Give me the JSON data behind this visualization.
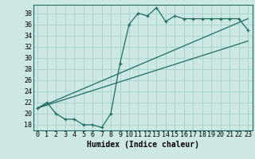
{
  "xlabel": "Humidex (Indice chaleur)",
  "bg_color": "#cde8e4",
  "grid_color": "#a8d4ce",
  "line_color": "#1e6b64",
  "xlim": [
    -0.5,
    23.5
  ],
  "ylim": [
    17,
    39.5
  ],
  "yticks": [
    18,
    20,
    22,
    24,
    26,
    28,
    30,
    32,
    34,
    36,
    38
  ],
  "xticks": [
    0,
    1,
    2,
    3,
    4,
    5,
    6,
    7,
    8,
    9,
    10,
    11,
    12,
    13,
    14,
    15,
    16,
    17,
    18,
    19,
    20,
    21,
    22,
    23
  ],
  "line1_x": [
    0,
    1,
    2,
    3,
    4,
    5,
    6,
    7,
    8,
    9,
    10,
    11,
    12,
    13,
    14,
    15,
    16,
    17,
    18,
    19,
    20,
    21,
    22,
    23
  ],
  "line1_y": [
    21,
    22,
    20,
    19,
    19,
    18,
    18,
    17.5,
    20,
    29,
    36,
    38,
    37.5,
    39,
    36.5,
    37.5,
    37,
    37,
    37,
    37,
    37,
    37,
    37,
    35
  ],
  "line2_x": [
    0,
    23
  ],
  "line2_y": [
    21,
    33
  ],
  "line3_x": [
    0,
    23
  ],
  "line3_y": [
    21,
    37
  ],
  "tick_fontsize": 6,
  "label_fontsize": 7
}
